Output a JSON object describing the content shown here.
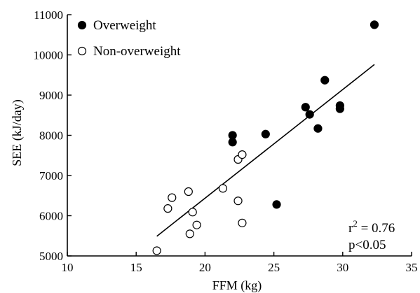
{
  "chart_data": {
    "type": "scatter",
    "title": "",
    "xlabel": "FFM (kg)",
    "ylabel": "SEE (kJ/day)",
    "xlim": [
      10,
      35
    ],
    "ylim": [
      5000,
      11000
    ],
    "x_ticks": [
      10,
      15,
      20,
      25,
      30,
      35
    ],
    "y_ticks": [
      5000,
      6000,
      7000,
      8000,
      9000,
      10000,
      11000
    ],
    "x_tick_labels": [
      "10",
      "15",
      "20",
      "25",
      "30",
      "35"
    ],
    "y_tick_labels": [
      "5000",
      "6000",
      "7000",
      "8000",
      "9000",
      "10000",
      "11000"
    ],
    "grid": false,
    "legend_position": "top-left",
    "series": [
      {
        "name": "Overweight",
        "marker": "filled-circle",
        "color": "#000000",
        "points": [
          [
            22.0,
            8000
          ],
          [
            22.0,
            7830
          ],
          [
            24.4,
            8030
          ],
          [
            25.2,
            6280
          ],
          [
            27.3,
            8700
          ],
          [
            27.6,
            8520
          ],
          [
            28.2,
            8170
          ],
          [
            28.7,
            9370
          ],
          [
            29.8,
            8740
          ],
          [
            29.8,
            8660
          ],
          [
            32.3,
            10750
          ]
        ]
      },
      {
        "name": "Non-overweight",
        "marker": "open-circle",
        "color": "#000000",
        "points": [
          [
            16.5,
            5130
          ],
          [
            17.3,
            6180
          ],
          [
            17.6,
            6450
          ],
          [
            18.8,
            6600
          ],
          [
            18.9,
            5550
          ],
          [
            19.1,
            6090
          ],
          [
            19.4,
            5770
          ],
          [
            21.3,
            6680
          ],
          [
            22.4,
            6370
          ],
          [
            22.4,
            7400
          ],
          [
            22.7,
            7520
          ],
          [
            22.7,
            5820
          ]
        ]
      }
    ],
    "trendline": {
      "x": [
        16.5,
        32.3
      ],
      "y": [
        5490,
        9760
      ]
    },
    "annotation": {
      "r2_prefix": "r",
      "r2_exp": "2",
      "r2_value": " = 0.76",
      "p_text": "p<0.05"
    }
  }
}
